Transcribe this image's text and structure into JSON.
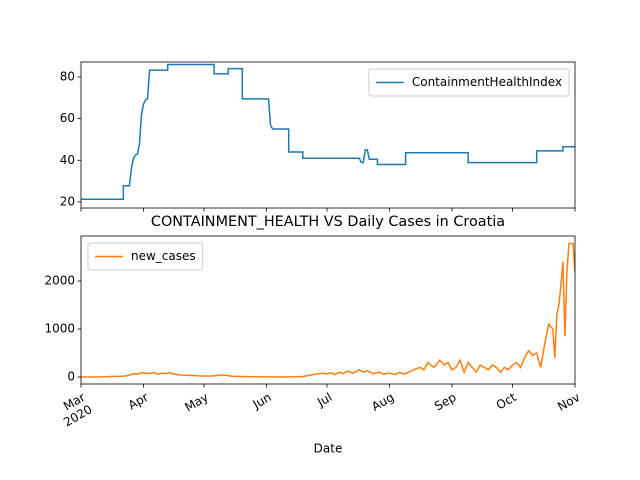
{
  "chart_data": [
    {
      "type": "line",
      "x": [
        0,
        21,
        21,
        24,
        25,
        26,
        27,
        28,
        29,
        30,
        31,
        32,
        33,
        34,
        43,
        43,
        66,
        66,
        73,
        73,
        80,
        80,
        93,
        94,
        95,
        96,
        103,
        103,
        110,
        110,
        137,
        138,
        139,
        140,
        141,
        142,
        143,
        147,
        147,
        161,
        161,
        192,
        192,
        226,
        226,
        239,
        239,
        245
      ],
      "series": [
        {
          "name": "ContainmentHealthIndex",
          "color": "#1f77b4",
          "values": [
            21.3,
            21.3,
            27.8,
            27.8,
            36,
            41,
            42.5,
            43,
            48,
            62,
            67,
            69,
            69.5,
            83.3,
            83.3,
            86,
            86,
            81.5,
            81.5,
            84,
            84,
            69.5,
            69.5,
            57,
            55,
            55,
            55,
            44,
            44,
            41,
            41,
            41,
            39,
            39,
            45,
            45,
            40.5,
            40.5,
            38,
            38,
            43.6,
            43.6,
            38.9,
            38.9,
            44.5,
            44.5,
            46.5,
            46.5
          ]
        }
      ],
      "xlim": [
        0,
        245
      ],
      "xticks": [
        0,
        31,
        61,
        92,
        122,
        153,
        184,
        214,
        245
      ],
      "ylim": [
        17.1,
        87.2
      ],
      "yticks": [
        20,
        40,
        60,
        80
      ],
      "legend": "upper right"
    },
    {
      "type": "line",
      "title": "CONTAINMENT_HEALTH VS Daily Cases in Croatia",
      "xlabel": "Date",
      "x": [
        0,
        5,
        10,
        15,
        20,
        22,
        24,
        26,
        28,
        30,
        32,
        34,
        36,
        38,
        40,
        42,
        44,
        46,
        48,
        50,
        55,
        60,
        65,
        70,
        75,
        80,
        85,
        90,
        95,
        100,
        105,
        110,
        115,
        120,
        122,
        124,
        126,
        128,
        130,
        132,
        135,
        138,
        140,
        142,
        145,
        148,
        150,
        153,
        156,
        158,
        160,
        162,
        165,
        168,
        170,
        172,
        175,
        178,
        180,
        182,
        184,
        186,
        188,
        190,
        192,
        194,
        196,
        198,
        200,
        202,
        204,
        206,
        208,
        210,
        212,
        214,
        216,
        218,
        220,
        222,
        224,
        226,
        228,
        230,
        232,
        234,
        235,
        236,
        237,
        238,
        239,
        240,
        241,
        242,
        243,
        244,
        245
      ],
      "series": [
        {
          "name": "new_cases",
          "color": "#ff7f0e",
          "values": [
            0,
            0,
            2,
            10,
            15,
            20,
            40,
            70,
            60,
            90,
            80,
            70,
            95,
            60,
            80,
            70,
            90,
            60,
            50,
            40,
            30,
            20,
            20,
            45,
            15,
            10,
            5,
            3,
            2,
            1,
            5,
            10,
            50,
            80,
            60,
            90,
            50,
            100,
            70,
            120,
            80,
            150,
            100,
            130,
            70,
            100,
            60,
            80,
            50,
            100,
            60,
            90,
            150,
            200,
            150,
            300,
            200,
            350,
            250,
            300,
            150,
            200,
            350,
            100,
            300,
            200,
            100,
            250,
            200,
            150,
            250,
            200,
            100,
            200,
            150,
            250,
            300,
            200,
            400,
            550,
            450,
            500,
            200,
            700,
            1100,
            1000,
            400,
            1300,
            1500,
            1900,
            2400,
            850,
            2200,
            2780,
            2780,
            2780,
            2180
          ]
        }
      ],
      "xlim": [
        0,
        245
      ],
      "xticks": [
        {
          "value": 0,
          "label": "Mar\n2020"
        },
        {
          "value": 31,
          "label": "Apr"
        },
        {
          "value": 61,
          "label": "May"
        },
        {
          "value": 92,
          "label": "Jun"
        },
        {
          "value": 122,
          "label": "Jul"
        },
        {
          "value": 153,
          "label": "Aug"
        },
        {
          "value": 184,
          "label": "Sep"
        },
        {
          "value": 214,
          "label": "Oct"
        },
        {
          "value": 245,
          "label": "Nov"
        }
      ],
      "ylim": [
        -146,
        2937
      ],
      "yticks": [
        0,
        1000,
        2000
      ],
      "legend": "upper left"
    }
  ]
}
